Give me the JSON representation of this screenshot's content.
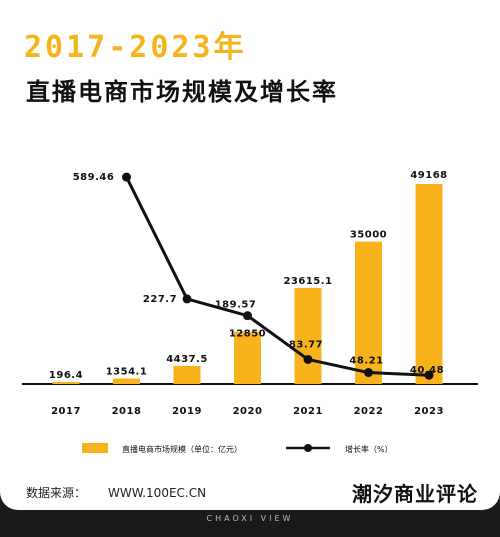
{
  "title_year": "2017-2023年",
  "title_main": "直播电商市场规模及增长率",
  "source_label": "数据来源：",
  "source_url": "WWW.100EC.CN",
  "brand": "潮汐商业评论",
  "footer": "CHAOXI VIEW",
  "colors": {
    "bar": "#f8b31c",
    "line": "#111111",
    "accent": "#f5b41c"
  },
  "chart_data": {
    "type": "bar",
    "categories": [
      "2017",
      "2018",
      "2019",
      "2020",
      "2021",
      "2022",
      "2023"
    ],
    "series": [
      {
        "name": "直播电商市场规模（单位：亿元）",
        "type": "bar",
        "values": [
          196.4,
          1354.1,
          4437.5,
          12850,
          23615.1,
          35000,
          49168
        ],
        "labels": [
          "196.4",
          "1354.1",
          "4437.5",
          "12850",
          "23615.1",
          "35000",
          "49168"
        ]
      },
      {
        "name": "增长率（%）",
        "type": "line",
        "values": [
          null,
          589.46,
          227.7,
          189.57,
          83.77,
          48.21,
          40.48
        ],
        "labels": [
          "",
          "589.46",
          "227.7",
          "189.57",
          "83.77",
          "48.21",
          "40.48"
        ]
      }
    ],
    "legend": {
      "position": "bottom"
    }
  }
}
